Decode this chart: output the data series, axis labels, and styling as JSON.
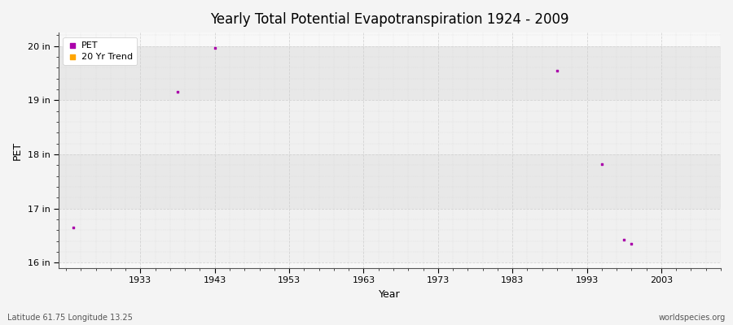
{
  "title": "Yearly Total Potential Evapotranspiration 1924 - 2009",
  "xlabel": "Year",
  "ylabel": "PET",
  "footer_left": "Latitude 61.75 Longitude 13.25",
  "footer_right": "worldspecies.org",
  "xlim": [
    1922,
    2011
  ],
  "ylim": [
    15.9,
    20.25
  ],
  "yticks": [
    16,
    17,
    18,
    19,
    20
  ],
  "ytick_labels": [
    "16 in",
    "17 in",
    "18 in",
    "19 in",
    "20 in"
  ],
  "xticks": [
    1933,
    1943,
    1953,
    1963,
    1973,
    1983,
    1993,
    2003
  ],
  "fig_bg_color": "#f4f4f4",
  "plot_bg_color": "#f8f8f8",
  "band_colors": [
    "#f0f0f0",
    "#e8e8e8"
  ],
  "grid_color": "#cccccc",
  "pet_color": "#aa00aa",
  "trend_color": "#ffa500",
  "pet_data": [
    [
      1924,
      16.65
    ],
    [
      1938,
      19.15
    ],
    [
      1943,
      19.97
    ],
    [
      1989,
      19.55
    ],
    [
      1995,
      17.82
    ],
    [
      1998,
      16.42
    ],
    [
      1999,
      16.35
    ]
  ],
  "legend_entries": [
    "PET",
    "20 Yr Trend"
  ],
  "marker_size": 4
}
